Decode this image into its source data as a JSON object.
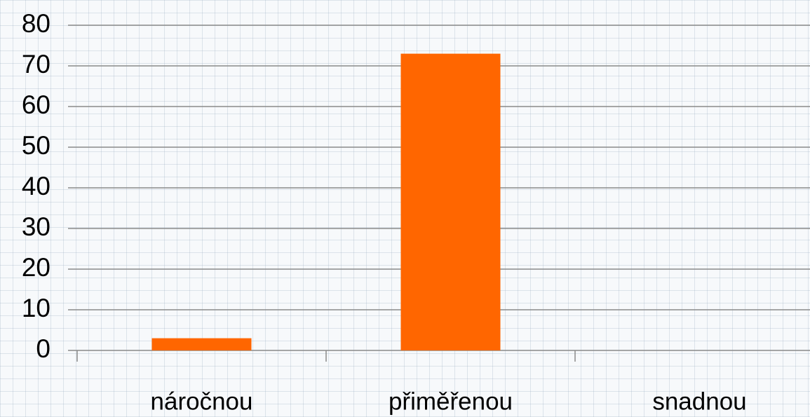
{
  "chart_data": {
    "type": "bar",
    "categories": [
      "náročnou",
      "přiměřenou",
      "snadnou"
    ],
    "values": [
      3,
      73,
      0
    ],
    "color": "#ff6600",
    "ylim": [
      0,
      80
    ],
    "yticks": [
      0,
      10,
      20,
      30,
      40,
      50,
      60,
      70,
      80
    ],
    "grid": true
  }
}
